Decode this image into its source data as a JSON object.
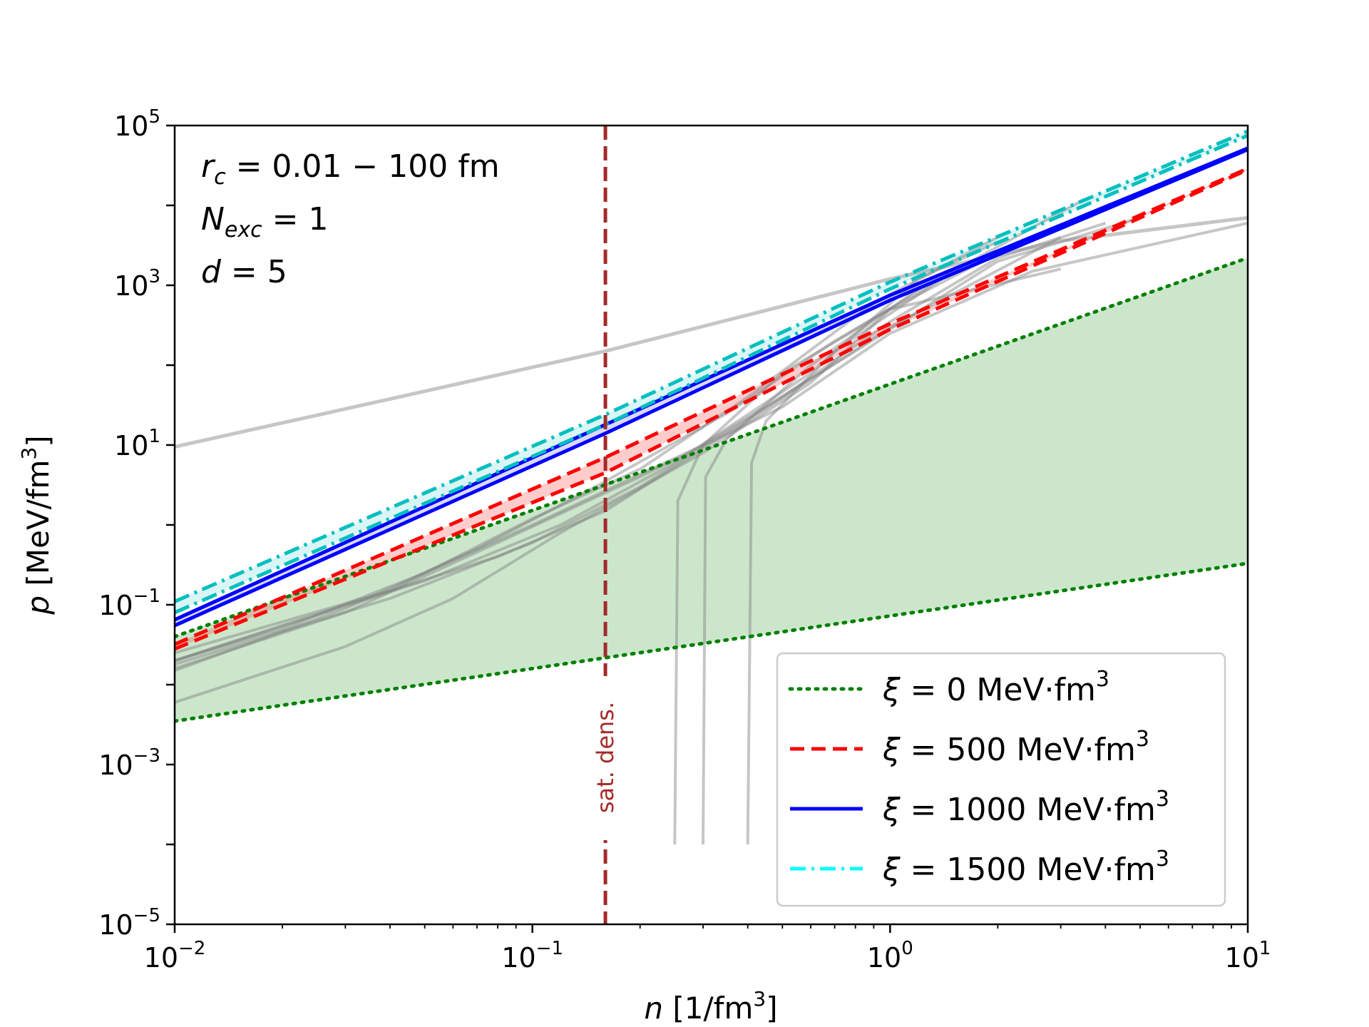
{
  "chart_data": {
    "type": "line",
    "xscale": "log",
    "yscale": "log",
    "xlim": [
      0.01,
      10
    ],
    "ylim": [
      1e-05,
      100000
    ],
    "x_ticks": [
      {
        "base": "10",
        "exp": "−2",
        "value": 0.01
      },
      {
        "base": "10",
        "exp": "−1",
        "value": 0.1
      },
      {
        "base": "10",
        "exp": "0",
        "value": 1
      },
      {
        "base": "10",
        "exp": "1",
        "value": 10
      }
    ],
    "y_ticks": [
      {
        "base": "10",
        "exp": "−5",
        "value": 1e-05
      },
      {
        "base": "10",
        "exp": "−3",
        "value": 0.001
      },
      {
        "base": "10",
        "exp": "−1",
        "value": 0.1
      },
      {
        "base": "10",
        "exp": "1",
        "value": 10
      },
      {
        "base": "10",
        "exp": "3",
        "value": 1000
      },
      {
        "base": "10",
        "exp": "5",
        "value": 100000
      }
    ],
    "xlabel": {
      "symbol": "n",
      "unit": " [1/fm",
      "unit_exp": "3",
      "unit_close": "]"
    },
    "ylabel": {
      "symbol": "p",
      "unit": " [MeV/fm",
      "unit_exp": "3",
      "unit_close": "]"
    },
    "annotations": {
      "line1": {
        "sym": "r",
        "sub": "c",
        "rest": " = 0.01 − 100 fm"
      },
      "line2": {
        "sym": "N",
        "sub": "exc",
        "rest": " = 1"
      },
      "line3": {
        "sym": "d",
        "rest": " = 5"
      }
    },
    "vline": {
      "x": 0.16,
      "label": "sat. dens.",
      "color": "#a52a2a"
    },
    "series": [
      {
        "name": "ξ = 0 MeV·fm³",
        "legend": {
          "sym": "ξ",
          "rest": " = 0 MeV·fm",
          "exp": "3"
        },
        "color": "#008000",
        "style": "dotted",
        "bands": [
          [
            [
              0.01,
              0.0035
            ],
            [
              10,
              0.33
            ]
          ],
          [
            [
              0.01,
              0.04
            ],
            [
              10,
              2200
            ]
          ]
        ],
        "fill": "rgba(0,128,0,0.2)"
      },
      {
        "name": "ξ = 500 MeV·fm³",
        "legend": {
          "sym": "ξ",
          "rest": " = 500 MeV·fm",
          "exp": "3"
        },
        "color": "#ff0000",
        "style": "dashed",
        "bands": [
          [
            [
              0.01,
              0.028
            ],
            [
              0.16,
              4.5
            ],
            [
              1,
              280
            ],
            [
              10,
              28000
            ]
          ],
          [
            [
              0.01,
              0.032
            ],
            [
              0.16,
              7
            ],
            [
              1,
              330
            ],
            [
              10,
              29000
            ]
          ]
        ],
        "fill": "rgba(255,0,0,0.2)"
      },
      {
        "name": "ξ = 1000 MeV·fm³",
        "legend": {
          "sym": "ξ",
          "rest": " = 1000 MeV·fm",
          "exp": "3"
        },
        "color": "#0000ff",
        "style": "solid",
        "bands": [
          [
            [
              0.01,
              0.055
            ],
            [
              0.16,
              14
            ],
            [
              1,
              650
            ],
            [
              10,
              50000
            ]
          ],
          [
            [
              0.01,
              0.065
            ],
            [
              0.16,
              18
            ],
            [
              1,
              750
            ],
            [
              10,
              52000
            ]
          ]
        ],
        "fill": "rgba(0,0,255,0.15)"
      },
      {
        "name": "ξ = 1500 MeV·fm³",
        "legend": {
          "sym": "ξ",
          "rest": " = 1500 MeV·fm",
          "exp": "3"
        },
        "color": "#00bfbf",
        "style": "dashdot",
        "legend_color": "#00ffff",
        "bands": [
          [
            [
              0.01,
              0.08
            ],
            [
              0.16,
              18
            ],
            [
              1,
              900
            ],
            [
              10,
              75000
            ]
          ],
          [
            [
              0.01,
              0.11
            ],
            [
              0.16,
              24
            ],
            [
              1,
              1100
            ],
            [
              10,
              85000
            ]
          ]
        ],
        "fill": "rgba(0,191,191,0.15)"
      }
    ],
    "gray_curves": [
      [
        [
          0.01,
          9.5
        ],
        [
          0.16,
          150
        ],
        [
          1,
          1200
        ],
        [
          3,
          3600
        ],
        [
          10,
          7000
        ]
      ],
      [
        [
          0.01,
          0.02
        ],
        [
          0.03,
          0.1
        ],
        [
          0.08,
          0.4
        ],
        [
          0.16,
          1.5
        ],
        [
          0.4,
          20
        ],
        [
          1,
          300
        ],
        [
          3,
          4000
        ]
      ],
      [
        [
          0.01,
          0.018
        ],
        [
          0.04,
          0.12
        ],
        [
          0.1,
          0.6
        ],
        [
          0.2,
          3
        ],
        [
          0.5,
          40
        ],
        [
          1,
          350
        ],
        [
          2,
          2200
        ],
        [
          4,
          6000
        ]
      ],
      [
        [
          0.01,
          0.006
        ],
        [
          0.03,
          0.03
        ],
        [
          0.06,
          0.12
        ],
        [
          0.12,
          0.8
        ],
        [
          0.3,
          8
        ],
        [
          0.6,
          60
        ],
        [
          1,
          500
        ],
        [
          3,
          1600
        ]
      ],
      [
        [
          0.01,
          0.02
        ],
        [
          0.05,
          0.2
        ],
        [
          0.12,
          1
        ],
        [
          0.25,
          6
        ],
        [
          0.6,
          80
        ],
        [
          1.2,
          1200
        ],
        [
          2,
          3500
        ]
      ],
      [
        [
          0.01,
          0.015
        ],
        [
          0.03,
          0.09
        ],
        [
          0.07,
          0.5
        ],
        [
          0.15,
          3
        ],
        [
          0.35,
          25
        ],
        [
          0.7,
          200
        ],
        [
          1.5,
          1500
        ],
        [
          3.5,
          12000
        ]
      ],
      [
        [
          0.01,
          0.025
        ],
        [
          0.04,
          0.15
        ],
        [
          0.1,
          1.2
        ],
        [
          0.2,
          5
        ],
        [
          0.4,
          40
        ],
        [
          0.9,
          600
        ],
        [
          2,
          4000
        ]
      ],
      [
        [
          0.25,
          0.0001
        ],
        [
          0.255,
          2
        ],
        [
          0.3,
          10
        ],
        [
          0.5,
          80
        ],
        [
          1,
          500
        ],
        [
          2,
          2500
        ]
      ],
      [
        [
          0.3,
          0.0001
        ],
        [
          0.305,
          4
        ],
        [
          0.35,
          12
        ],
        [
          0.6,
          100
        ],
        [
          1.2,
          900
        ]
      ],
      [
        [
          0.4,
          0.0001
        ],
        [
          0.41,
          6
        ],
        [
          0.45,
          20
        ],
        [
          0.7,
          150
        ],
        [
          1.5,
          1500
        ]
      ],
      [
        [
          0.01,
          0.02
        ],
        [
          0.02,
          0.05
        ],
        [
          0.05,
          0.25
        ],
        [
          0.1,
          1
        ],
        [
          0.3,
          10
        ],
        [
          0.8,
          150
        ],
        [
          2,
          2000
        ],
        [
          5,
          7000
        ]
      ],
      [
        [
          0.01,
          0.016
        ],
        [
          0.03,
          0.08
        ],
        [
          0.08,
          0.6
        ],
        [
          0.2,
          4
        ],
        [
          0.5,
          30
        ],
        [
          1,
          250
        ],
        [
          2.5,
          1500
        ],
        [
          10,
          6000
        ]
      ]
    ]
  }
}
